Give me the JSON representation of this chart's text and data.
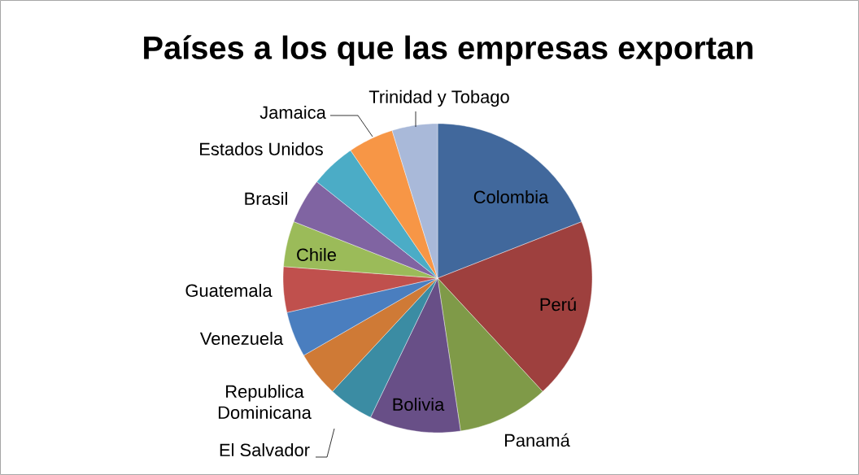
{
  "chart_data": {
    "type": "pie",
    "title": "Países a los que las empresas exportan",
    "categories": [
      "Colombia",
      "Perú",
      "Panamá",
      "Bolivia",
      "El Salvador",
      "Republica Dominicana",
      "Venezuela",
      "Guatemala",
      "Chile",
      "Brasil",
      "Estados Unidos",
      "Jamaica",
      "Trinidad y Tobago"
    ],
    "values": [
      19.05,
      19.05,
      9.52,
      9.52,
      4.76,
      4.76,
      4.76,
      4.76,
      4.76,
      4.76,
      4.76,
      4.76,
      4.76
    ],
    "colors": [
      "#41689c",
      "#9e403e",
      "#7f9a48",
      "#684f87",
      "#3b8ca3",
      "#cf7a36",
      "#4a7ebf",
      "#c0504d",
      "#9bbb59",
      "#8064a2",
      "#4bacc6",
      "#f79646",
      "#a9b9d9"
    ],
    "legend": false
  }
}
